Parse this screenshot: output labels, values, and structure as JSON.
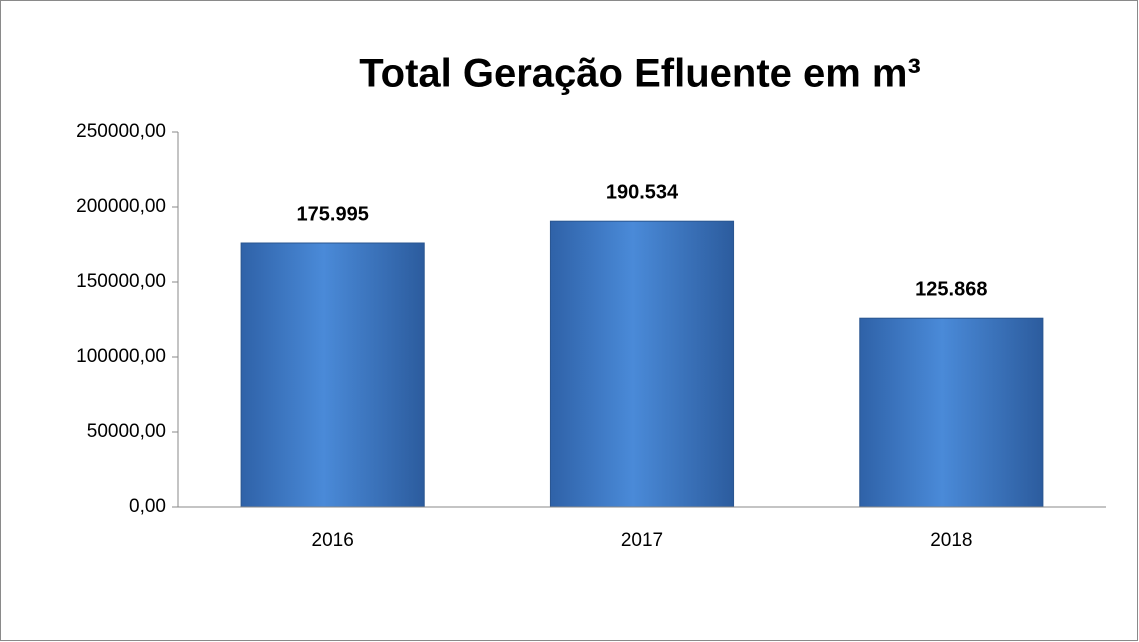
{
  "chart_data": {
    "type": "bar",
    "title": "Total Geração Efluente em m³",
    "categories": [
      "2016",
      "2017",
      "2018"
    ],
    "values": [
      175995,
      190534,
      125868
    ],
    "value_labels": [
      "175.995",
      "190.534",
      "125.868"
    ],
    "color": "#3f7fd0",
    "ylim": [
      0,
      250000
    ],
    "yticks": [
      {
        "value": 0,
        "label": "0,00"
      },
      {
        "value": 50000,
        "label": "50000,00"
      },
      {
        "value": 100000,
        "label": "100000,00"
      },
      {
        "value": 150000,
        "label": "150000,00"
      },
      {
        "value": 200000,
        "label": "200000,00"
      },
      {
        "value": 250000,
        "label": "250000,00"
      }
    ],
    "grid": false
  }
}
